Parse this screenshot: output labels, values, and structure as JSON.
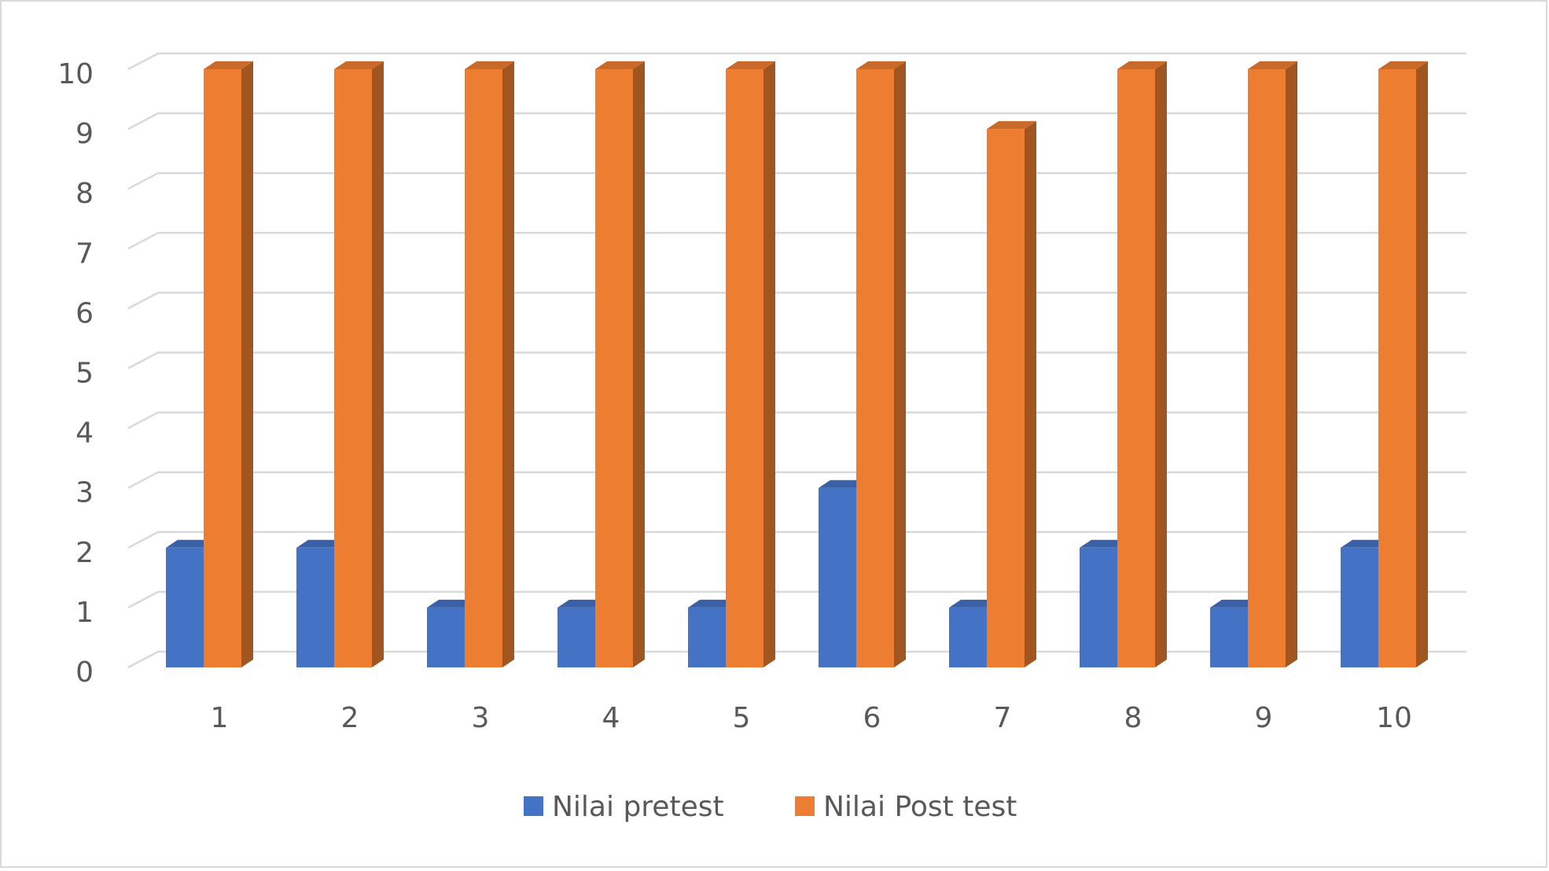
{
  "chart_data": {
    "type": "bar3d",
    "categories": [
      "1",
      "2",
      "3",
      "4",
      "5",
      "6",
      "7",
      "8",
      "9",
      "10"
    ],
    "series": [
      {
        "name": "Nilai pretest",
        "color": "#4472c4",
        "values": [
          2,
          2,
          1,
          1,
          1,
          3,
          1,
          2,
          1,
          2
        ]
      },
      {
        "name": "Nilai Post test",
        "color": "#ed7d31",
        "values": [
          10,
          10,
          10,
          10,
          10,
          10,
          9,
          10,
          10,
          10
        ]
      }
    ],
    "ylim": [
      0,
      10
    ],
    "yticks": [
      0,
      1,
      2,
      3,
      4,
      5,
      6,
      7,
      8,
      9,
      10
    ],
    "grid": true,
    "legend": "bottom"
  }
}
